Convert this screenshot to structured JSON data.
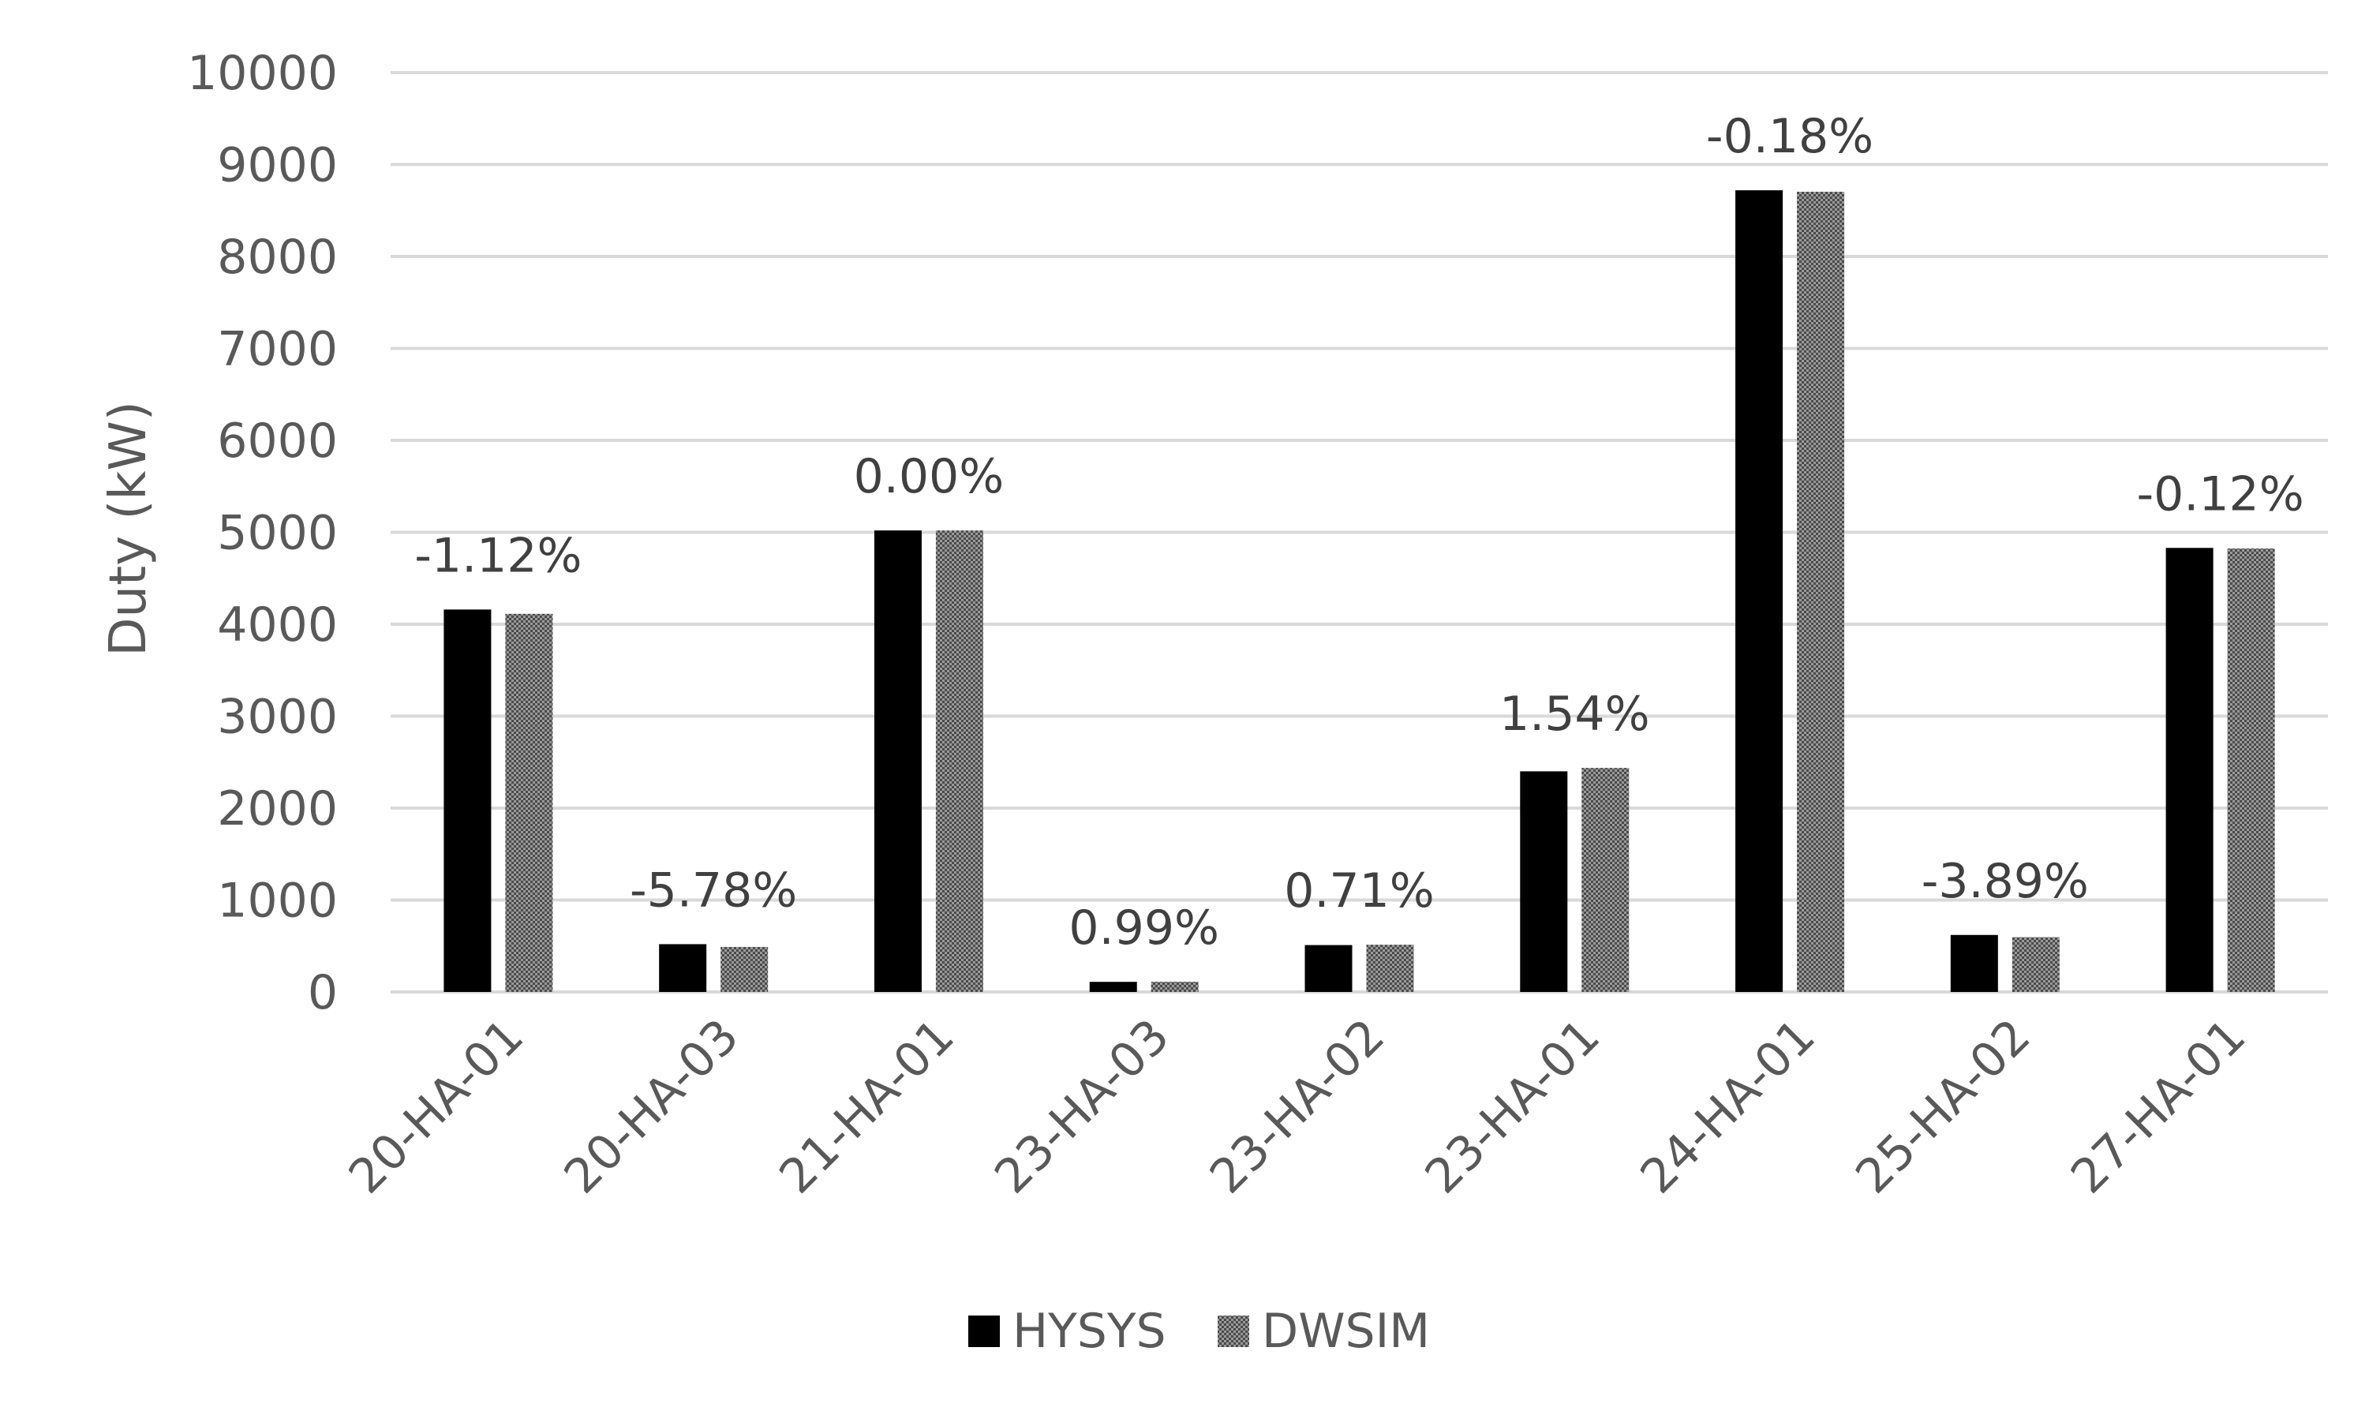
{
  "chart_data": {
    "type": "bar",
    "title": "",
    "xlabel": "",
    "ylabel": "Duty (kW)",
    "ylim": [
      0,
      10000
    ],
    "yticks": [
      0,
      1000,
      2000,
      3000,
      4000,
      5000,
      6000,
      7000,
      8000,
      9000,
      10000
    ],
    "grid": true,
    "legend_position": "bottom",
    "categories": [
      "20-HA-01",
      "20-HA-03",
      "21-HA-01",
      "23-HA-03",
      "23-HA-02",
      "23-HA-01",
      "24-HA-01",
      "25-HA-02",
      "27-HA-01"
    ],
    "series": [
      {
        "name": "HYSYS",
        "color": "#000000",
        "values": [
          4160,
          520,
          5020,
          110,
          510,
          2400,
          8720,
          620,
          4830
        ]
      },
      {
        "name": "DWSIM",
        "color": "#7a7a7a",
        "pattern": "checker",
        "values": [
          4113,
          490,
          5020,
          111,
          514,
          2437,
          8704,
          596,
          4824
        ]
      }
    ],
    "annotations": [
      "-1.12%",
      "-5.78%",
      "0.00%",
      "0.99%",
      "0.71%",
      "1.54%",
      "-0.18%",
      "-3.89%",
      "-0.12%"
    ]
  }
}
